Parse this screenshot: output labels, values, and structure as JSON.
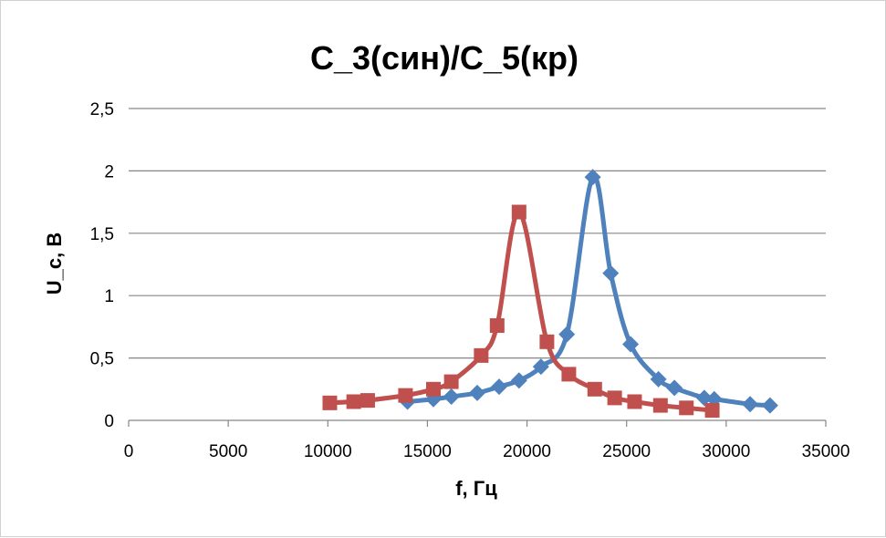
{
  "chart_data": {
    "type": "line",
    "title": "C_3(син)/C_5(кр)",
    "xlabel": "f, Гц",
    "ylabel": "U_c, В",
    "xlim": [
      0,
      35000
    ],
    "ylim": [
      0,
      2.5
    ],
    "x_ticks": [
      "0",
      "5000",
      "10000",
      "15000",
      "20000",
      "25000",
      "30000",
      "35000"
    ],
    "y_ticks": [
      "0",
      "0,5",
      "1",
      "1,5",
      "2",
      "2,5"
    ],
    "grid": true,
    "legend": "none",
    "series": [
      {
        "color": "#4F81BD",
        "marker": "diamond",
        "points": [
          [
            14000,
            0.15
          ],
          [
            15300,
            0.17
          ],
          [
            16200,
            0.19
          ],
          [
            17500,
            0.22
          ],
          [
            18600,
            0.27
          ],
          [
            19600,
            0.32
          ],
          [
            20700,
            0.43
          ],
          [
            22000,
            0.69
          ],
          [
            23300,
            1.95
          ],
          [
            24200,
            1.18
          ],
          [
            25200,
            0.61
          ],
          [
            26600,
            0.33
          ],
          [
            27400,
            0.26
          ],
          [
            28900,
            0.18
          ],
          [
            29400,
            0.17
          ],
          [
            31200,
            0.13
          ],
          [
            32200,
            0.12
          ]
        ]
      },
      {
        "color": "#C0504D",
        "marker": "square",
        "points": [
          [
            10100,
            0.14
          ],
          [
            11300,
            0.15
          ],
          [
            12000,
            0.16
          ],
          [
            13900,
            0.2
          ],
          [
            15300,
            0.25
          ],
          [
            16200,
            0.31
          ],
          [
            17700,
            0.52
          ],
          [
            18500,
            0.76
          ],
          [
            19600,
            1.67
          ],
          [
            21000,
            0.63
          ],
          [
            22100,
            0.37
          ],
          [
            23400,
            0.25
          ],
          [
            24400,
            0.18
          ],
          [
            25400,
            0.15
          ],
          [
            26700,
            0.12
          ],
          [
            28000,
            0.1
          ],
          [
            29300,
            0.08
          ]
        ]
      }
    ]
  }
}
